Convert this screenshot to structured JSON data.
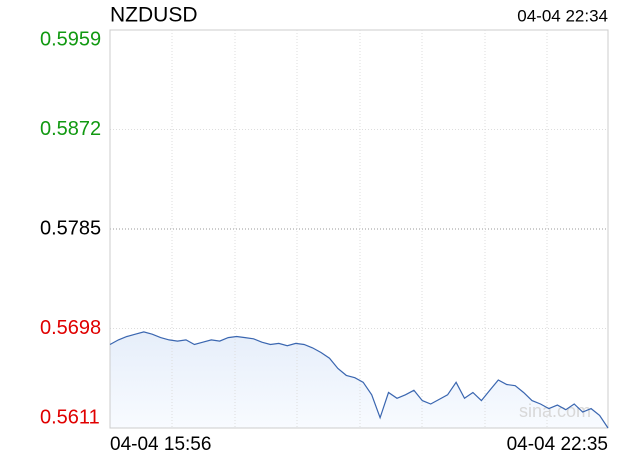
{
  "chart_data": {
    "type": "line",
    "title": "NZDUSD",
    "timestamp": "04-04 22:34",
    "x_start_label": "04-04 15:56",
    "x_end_label": "04-04 22:35",
    "watermark": "sina.com",
    "ylim": [
      0.5611,
      0.5959
    ],
    "yticks": [
      0.5611,
      0.5698,
      0.5785,
      0.5872,
      0.5959
    ],
    "ytick_colors": [
      "#e00000",
      "#e00000",
      "#000000",
      "#119911",
      "#119911"
    ],
    "grid": true,
    "color": "#3a66b0",
    "values": [
      0.5684,
      0.5688,
      0.5691,
      0.5693,
      0.5695,
      0.5693,
      0.569,
      0.5688,
      0.5687,
      0.5688,
      0.5684,
      0.5686,
      0.5688,
      0.5687,
      0.569,
      0.5691,
      0.569,
      0.5689,
      0.5686,
      0.5684,
      0.5685,
      0.5683,
      0.5685,
      0.5684,
      0.5681,
      0.5677,
      0.5672,
      0.5663,
      0.5657,
      0.5655,
      0.5651,
      0.564,
      0.562,
      0.5642,
      0.5637,
      0.564,
      0.5644,
      0.5635,
      0.5632,
      0.5636,
      0.564,
      0.5651,
      0.5637,
      0.5642,
      0.5635,
      0.5644,
      0.5653,
      0.5649,
      0.5648,
      0.5642,
      0.5635,
      0.5632,
      0.5628,
      0.5631,
      0.5627,
      0.5632,
      0.5625,
      0.5628,
      0.5622,
      0.5611
    ]
  }
}
